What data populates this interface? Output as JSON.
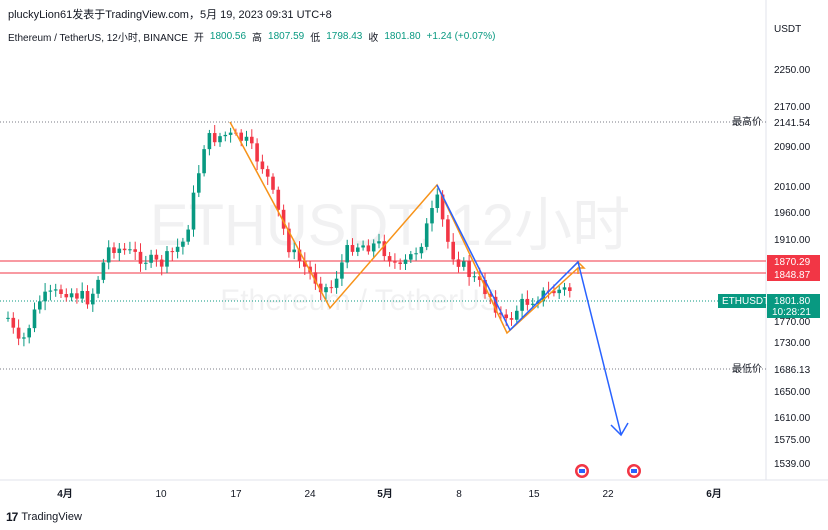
{
  "header": {
    "author": "pluckyLion61发表于TradingView.com，5月 19, 2023 09:31 UTC+8",
    "symbol": "Ethereum / TetherUS, 12小时, BINANCE",
    "open_label": "开",
    "open": "1800.56",
    "high_label": "高",
    "high": "1807.59",
    "low_label": "低",
    "low": "1798.43",
    "close_label": "收",
    "close": "1801.80",
    "change": "+1.24 (+0.07%)"
  },
  "price_axis": {
    "currency": "USDT",
    "ticks": [
      "2250.00",
      "2170.00",
      "2090.00",
      "2010.00",
      "1960.00",
      "1910.00",
      "1770.00",
      "1730.00",
      "1650.00",
      "1610.00",
      "1575.00",
      "1539.00"
    ]
  },
  "time_axis": {
    "ticks": [
      "4月",
      "10",
      "17",
      "24",
      "5月",
      "8",
      "15",
      "22",
      "6月"
    ]
  },
  "tags": {
    "high_label": "最高价",
    "high_value": "2141.54",
    "low_label": "最低价",
    "low_value": "1686.13",
    "line1": "1870.29",
    "line2": "1848.87",
    "symbol": "ETHUSDT",
    "last": "1801.80",
    "countdown": "10:28:21"
  },
  "watermark": {
    "main": "ETHUSDT, 12小时",
    "sub": "Ethereum / TetherUS"
  },
  "footer": {
    "brand": "TradingView",
    "logo": "17"
  },
  "colors": {
    "up": "#089981",
    "down": "#f23645",
    "orange": "#f7931a",
    "blue": "#2962ff",
    "resistance": "#f23645"
  }
}
